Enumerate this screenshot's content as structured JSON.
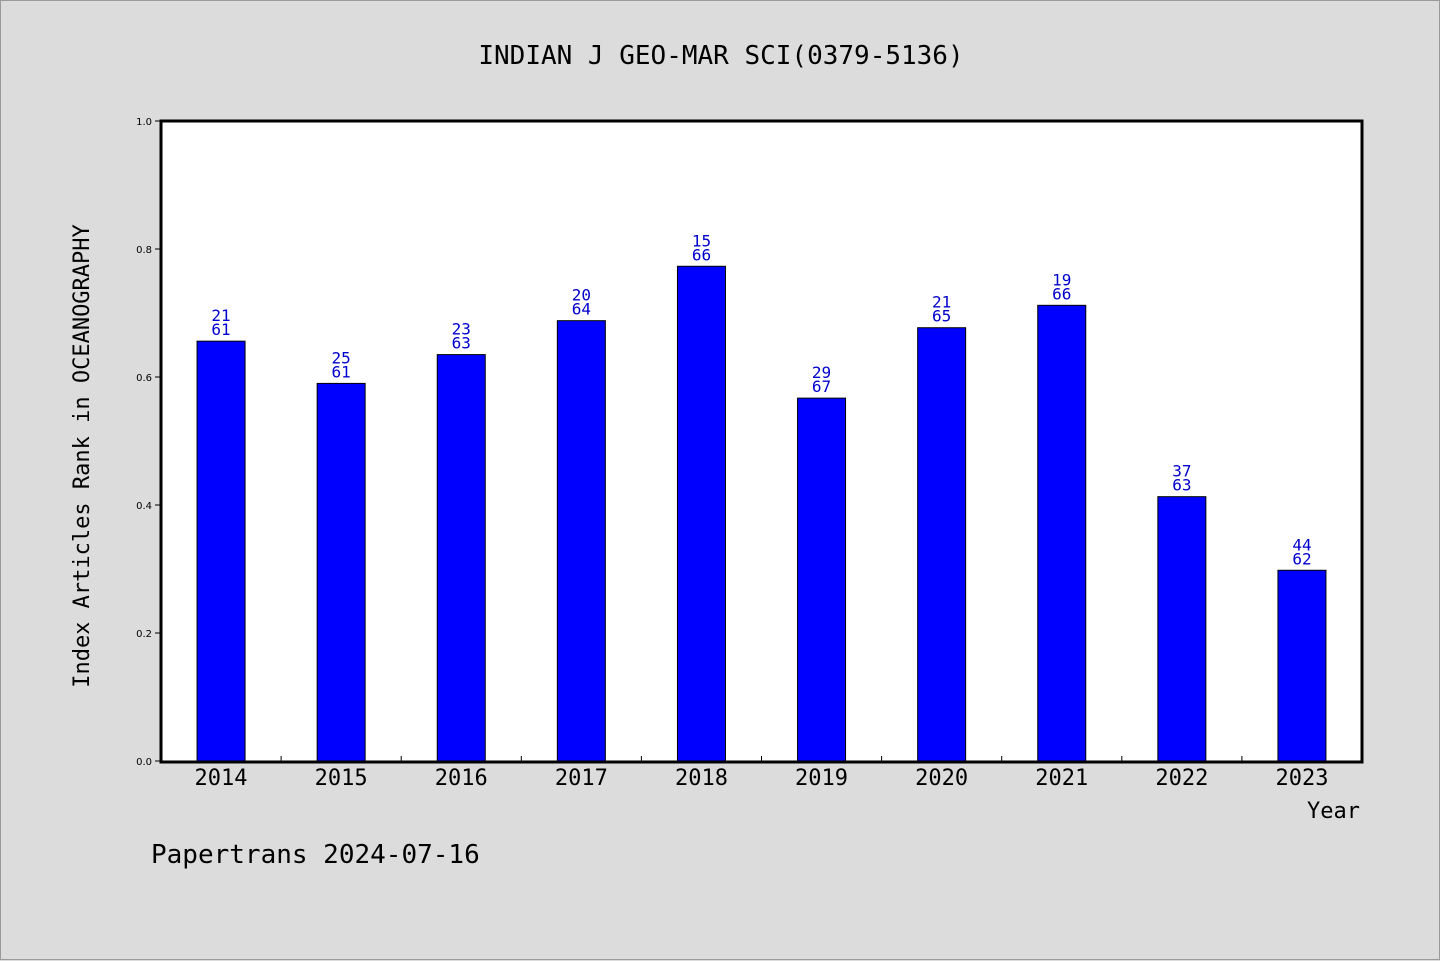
{
  "chart_data": {
    "type": "bar",
    "title": "INDIAN J GEO-MAR SCI(0379-5136)",
    "xlabel": "Year",
    "ylabel": "Index Articles Rank in OCEANOGRAPHY",
    "ylim": [
      0.0,
      1.0
    ],
    "yticks": [
      "0.0",
      "0.2",
      "0.4",
      "0.6",
      "0.8",
      "1.0"
    ],
    "ytick_values": [
      0.0,
      0.2,
      0.4,
      0.6,
      0.8,
      1.0
    ],
    "categories": [
      "2014",
      "2015",
      "2016",
      "2017",
      "2018",
      "2019",
      "2020",
      "2021",
      "2022",
      "2023"
    ],
    "values": [
      0.656,
      0.59,
      0.635,
      0.688,
      0.773,
      0.567,
      0.677,
      0.712,
      0.413,
      0.298
    ],
    "labels_top": [
      "21",
      "25",
      "23",
      "20",
      "15",
      "29",
      "21",
      "19",
      "37",
      "44"
    ],
    "labels_bottom": [
      "61",
      "61",
      "63",
      "64",
      "66",
      "67",
      "65",
      "66",
      "63",
      "62"
    ],
    "bar_color": "#0000ff",
    "label_color": "#0000cc",
    "grid": false
  },
  "footer": "Papertrans 2024-07-16"
}
